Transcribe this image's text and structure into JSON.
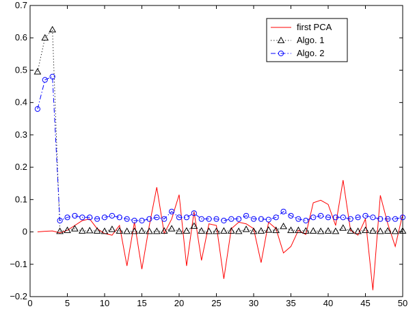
{
  "chart_data": {
    "type": "line",
    "title": "",
    "xlabel": "",
    "ylabel": "",
    "xlim": [
      0,
      50
    ],
    "ylim": [
      -0.2,
      0.7
    ],
    "xticks": [
      0,
      5,
      10,
      15,
      20,
      25,
      30,
      35,
      40,
      45,
      50
    ],
    "yticks": [
      -0.2,
      -0.1,
      0,
      0.1,
      0.2,
      0.3,
      0.4,
      0.5,
      0.6,
      0.7
    ],
    "ytick_labels": [
      "−0.2",
      "−0.1",
      "0",
      "0.1",
      "0.2",
      "0.3",
      "0.4",
      "0.5",
      "0.6",
      "0.7"
    ],
    "grid": false,
    "legend_position": "top-right",
    "x": [
      1,
      2,
      3,
      4,
      5,
      6,
      7,
      8,
      9,
      10,
      11,
      12,
      13,
      14,
      15,
      16,
      17,
      18,
      19,
      20,
      21,
      22,
      23,
      24,
      25,
      26,
      27,
      28,
      29,
      30,
      31,
      32,
      33,
      34,
      35,
      36,
      37,
      38,
      39,
      40,
      41,
      42,
      43,
      44,
      45,
      46,
      47,
      48,
      49,
      50
    ],
    "series": [
      {
        "name": "first PCA",
        "color": "#ff0000",
        "line_style": "solid",
        "marker": "none",
        "values": [
          0,
          0.002,
          0.003,
          -0.003,
          0.005,
          0.02,
          0.035,
          0.04,
          0.01,
          -0.005,
          -0.01,
          0.02,
          -0.105,
          0.03,
          -0.115,
          0.02,
          0.138,
          -0.005,
          0.04,
          0.115,
          -0.105,
          0.063,
          -0.088,
          0.025,
          0.02,
          -0.145,
          0.01,
          0.03,
          0.025,
          0.01,
          -0.095,
          0.03,
          0.01,
          -0.065,
          -0.045,
          0.005,
          -0.008,
          0.09,
          0.098,
          0.085,
          0.02,
          0.16,
          0.005,
          -0.01,
          0.04,
          -0.18,
          0.113,
          0.025,
          -0.045,
          0.055
        ]
      },
      {
        "name": "Algo. 1",
        "color": "#000000",
        "line_style": "dotted",
        "marker": "triangle",
        "values": [
          0.495,
          0.6,
          0.625,
          0.002,
          0.005,
          0.01,
          0.003,
          0.004,
          0.003,
          0.002,
          0.008,
          0.003,
          0.002,
          0.002,
          0.003,
          0.002,
          0.002,
          0.003,
          0.01,
          0.002,
          0.003,
          0.018,
          0.003,
          0.002,
          0.002,
          0.003,
          0.003,
          0.002,
          0.008,
          0.002,
          0.003,
          0.006,
          0.005,
          0.017,
          0.005,
          0.005,
          0.003,
          0.003,
          0.002,
          0.003,
          0.002,
          0.012,
          0.003,
          0.002,
          0.005,
          0.003,
          0.002,
          0.003,
          0.002,
          0.003
        ]
      },
      {
        "name": "Algo. 2",
        "color": "#0000ff",
        "line_style": "dashdot",
        "marker": "circle",
        "values": [
          0.38,
          0.47,
          0.48,
          0.035,
          0.045,
          0.05,
          0.045,
          0.045,
          0.04,
          0.045,
          0.05,
          0.045,
          0.04,
          0.035,
          0.035,
          0.04,
          0.045,
          0.04,
          0.063,
          0.045,
          0.045,
          0.058,
          0.04,
          0.04,
          0.04,
          0.035,
          0.04,
          0.04,
          0.05,
          0.04,
          0.04,
          0.038,
          0.045,
          0.063,
          0.05,
          0.04,
          0.035,
          0.045,
          0.05,
          0.045,
          0.045,
          0.045,
          0.04,
          0.045,
          0.05,
          0.045,
          0.04,
          0.04,
          0.04,
          0.045
        ]
      }
    ]
  }
}
